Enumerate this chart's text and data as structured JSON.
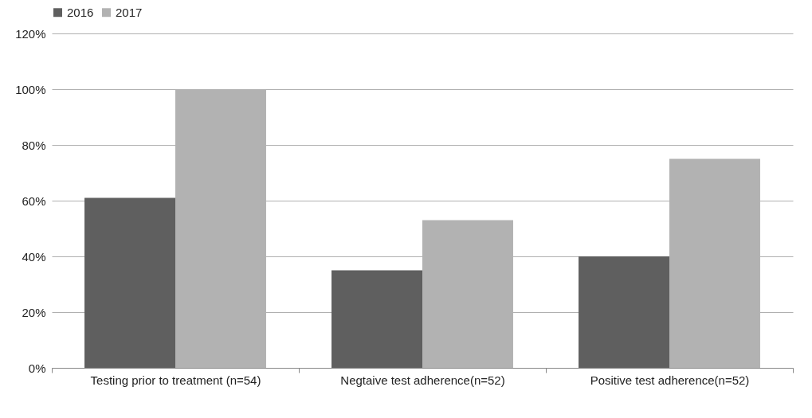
{
  "chart_data": {
    "type": "bar",
    "categories": [
      "Testing prior to treatment (n=54)",
      "Negtaive test adherence(n=52)",
      "Positive test adherence(n=52)"
    ],
    "series": [
      {
        "name": "2016",
        "color": "#5f5f5f",
        "values": [
          61,
          35,
          40
        ]
      },
      {
        "name": "2017",
        "color": "#b2b2b2",
        "values": [
          100,
          53,
          75
        ]
      }
    ],
    "ylim": [
      0,
      120
    ],
    "yticks": [
      {
        "value": 0,
        "label": "0%"
      },
      {
        "value": 20,
        "label": "20%"
      },
      {
        "value": 40,
        "label": "40%"
      },
      {
        "value": 60,
        "label": "60%"
      },
      {
        "value": 80,
        "label": "80%"
      },
      {
        "value": 100,
        "label": "100%"
      },
      {
        "value": 120,
        "label": "120%"
      }
    ],
    "grid": "y",
    "legend": "top"
  }
}
